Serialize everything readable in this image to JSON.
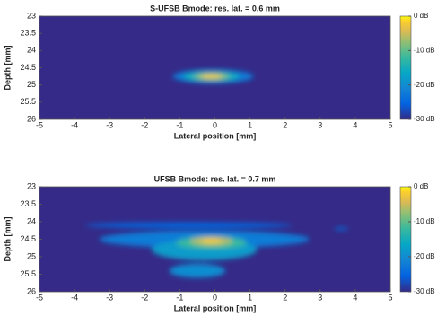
{
  "chart_data": [
    {
      "type": "heatmap",
      "title": "S-UFSB Bmode: res. lat. = 0.6 mm",
      "xlabel": "Lateral position [mm]",
      "ylabel": "Depth [mm]",
      "xlim": [
        -5,
        5
      ],
      "ylim": [
        26,
        23
      ],
      "xticks": [
        -5,
        -4,
        -3,
        -2,
        -1,
        0,
        1,
        2,
        3,
        4,
        5
      ],
      "yticks": [
        23,
        23.5,
        24,
        24.5,
        25,
        25.5,
        26
      ],
      "clim": [
        -30,
        0
      ],
      "cticks": [
        {
          "value": 0,
          "label": "0 dB"
        },
        {
          "value": -10,
          "label": "-10 dB"
        },
        {
          "value": -20,
          "label": "-20 dB"
        },
        {
          "value": -30,
          "label": "-30 dB"
        }
      ],
      "x": [
        -0.05,
        -0.1,
        -0.1,
        -0.1
      ],
      "y": [
        24.75,
        24.75,
        24.75,
        24.75
      ],
      "x_extent": [
        1.15,
        0.8,
        0.5,
        0.3
      ],
      "y_extent": [
        0.2,
        0.15,
        0.1,
        0.06
      ],
      "values": [
        -22,
        -15,
        -8,
        -2
      ]
    },
    {
      "type": "heatmap",
      "title": "UFSB Bmode: res. lat. = 0.7 mm",
      "xlabel": "Lateral position [mm]",
      "ylabel": "Depth [mm]",
      "xlim": [
        -5,
        5
      ],
      "ylim": [
        26,
        23
      ],
      "xticks": [
        -5,
        -4,
        -3,
        -2,
        -1,
        0,
        1,
        2,
        3,
        4,
        5
      ],
      "yticks": [
        23,
        23.5,
        24,
        24.5,
        25,
        25.5,
        26
      ],
      "clim": [
        -30,
        0
      ],
      "cticks": [
        {
          "value": 0,
          "label": "0 dB"
        },
        {
          "value": -10,
          "label": "-10 dB"
        },
        {
          "value": -20,
          "label": "-20 dB"
        },
        {
          "value": -30,
          "label": "-30 dB"
        }
      ],
      "x": [
        -0.75,
        3.6,
        -0.3,
        -0.5,
        -0.3,
        -0.1,
        -0.1,
        -0.1
      ],
      "y": [
        24.1,
        24.2,
        24.5,
        25.4,
        24.8,
        24.6,
        24.55,
        24.55
      ],
      "x_extent": [
        2.95,
        0.2,
        3.0,
        0.8,
        1.5,
        1.0,
        0.6,
        0.3
      ],
      "y_extent": [
        0.08,
        0.04,
        0.25,
        0.2,
        0.3,
        0.18,
        0.12,
        0.07
      ],
      "values": [
        -25,
        -24,
        -22,
        -20,
        -18,
        -12,
        -6,
        -2
      ]
    }
  ]
}
